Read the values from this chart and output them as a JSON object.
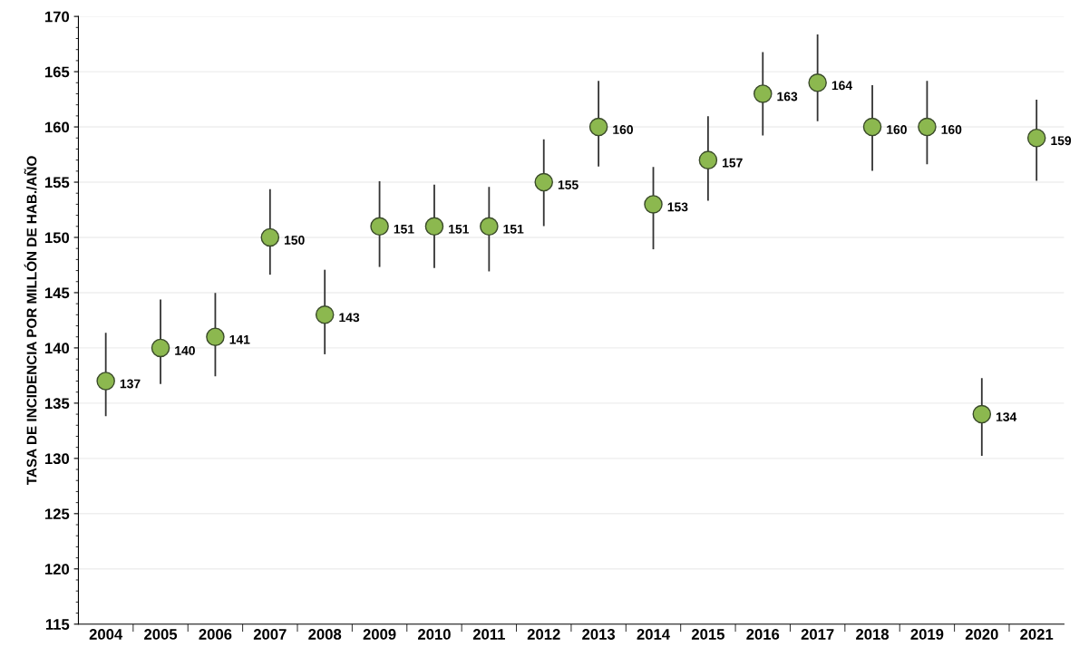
{
  "chart_data": {
    "type": "scatter",
    "ylabel": "TASA DE INCIDENCIA POR MILLÓN DE HAB./AÑO",
    "categories": [
      "2004",
      "2005",
      "2006",
      "2007",
      "2008",
      "2009",
      "2010",
      "2011",
      "2012",
      "2013",
      "2014",
      "2015",
      "2016",
      "2017",
      "2018",
      "2019",
      "2020",
      "2021"
    ],
    "values": [
      137,
      140,
      141,
      150,
      143,
      151,
      151,
      151,
      155,
      160,
      153,
      157,
      163,
      164,
      160,
      160,
      134,
      159
    ],
    "errors": [
      [
        133.9,
        141.3
      ],
      [
        136.8,
        144.3
      ],
      [
        137.5,
        144.9
      ],
      [
        146.7,
        154.3
      ],
      [
        139.5,
        147.0
      ],
      [
        147.4,
        155.0
      ],
      [
        147.3,
        154.7
      ],
      [
        147.0,
        154.5
      ],
      [
        151.1,
        158.8
      ],
      [
        156.5,
        164.1
      ],
      [
        149.0,
        156.3
      ],
      [
        153.4,
        160.9
      ],
      [
        159.3,
        166.7
      ],
      [
        160.6,
        168.3
      ],
      [
        156.1,
        163.7
      ],
      [
        156.7,
        164.1
      ],
      [
        130.3,
        137.2
      ],
      [
        155.2,
        162.4
      ]
    ],
    "color": "#8cb84f",
    "data_labels": true,
    "ylim": [
      115,
      170
    ],
    "yticks": [
      115,
      120,
      125,
      130,
      135,
      140,
      145,
      150,
      155,
      160,
      165,
      170
    ],
    "grid": "y",
    "marker": "circle"
  }
}
